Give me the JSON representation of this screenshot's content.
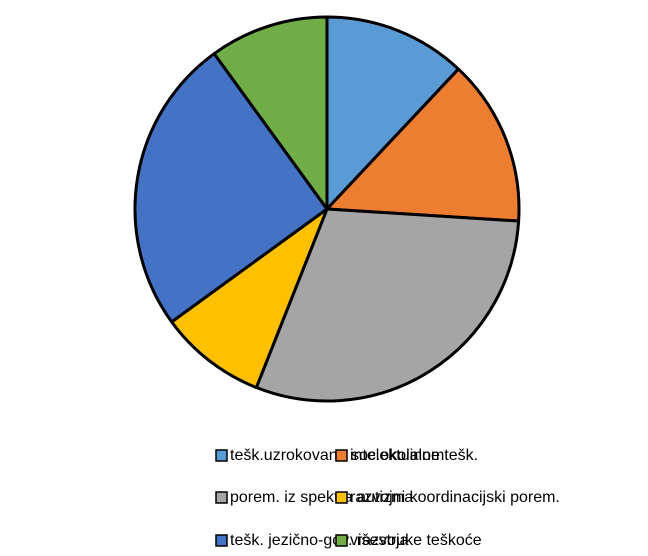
{
  "chart_data": {
    "type": "pie",
    "categories": [
      "tešk.uzrokovane soc.okolinom",
      "intelektualne tešk.",
      "porem. iz spektra autizma",
      "razvojni koordinacijski porem.",
      "tešk. jezično-gov. razvoja",
      "višestruke teškoće"
    ],
    "values": [
      12,
      14,
      30,
      9,
      25,
      10
    ],
    "colors": [
      "#5b9bd5",
      "#ed7d31",
      "#a5a5a5",
      "#ffc000",
      "#4472c4",
      "#70ad47"
    ],
    "legend": "bottom"
  }
}
